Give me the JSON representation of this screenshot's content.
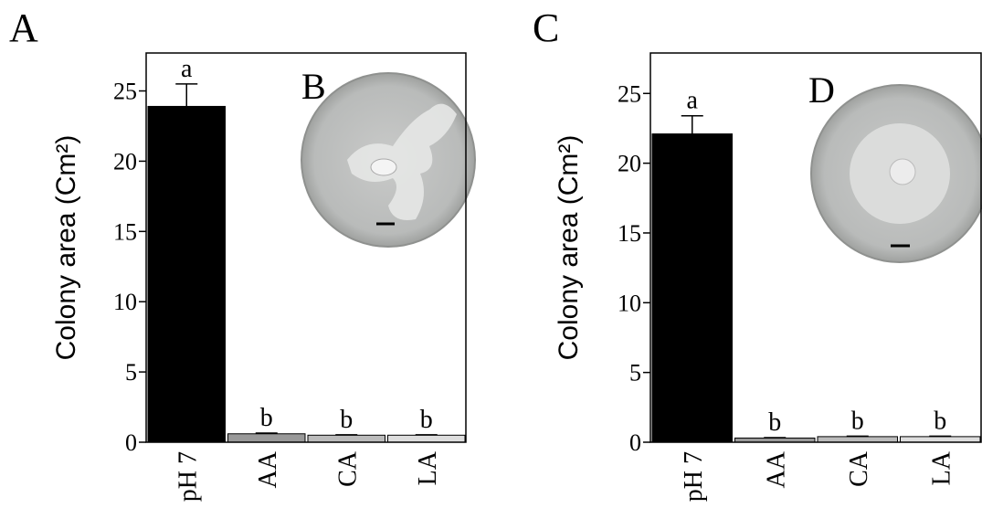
{
  "chart_data": [
    {
      "type": "bar",
      "panel_label": "A",
      "inset_label": "B",
      "ylabel": "Colony area (Cm²)",
      "categories": [
        "pH 7",
        "AA",
        "CA",
        "LA"
      ],
      "values": [
        23.9,
        0.6,
        0.5,
        0.5
      ],
      "errors": [
        1.6,
        0.05,
        0.03,
        0.03
      ],
      "annotations": [
        "a",
        "b",
        "b",
        "b"
      ],
      "colors": [
        "#000000",
        "#999999",
        "#bbbbbb",
        "#dddddd"
      ],
      "ylim": [
        0,
        27.7
      ],
      "yticks": [
        0,
        5,
        10,
        15,
        20,
        25
      ]
    },
    {
      "type": "bar",
      "panel_label": "C",
      "inset_label": "D",
      "ylabel": "Colony area (Cm²)",
      "categories": [
        "pH 7",
        "AA",
        "CA",
        "LA"
      ],
      "values": [
        22.1,
        0.3,
        0.4,
        0.4
      ],
      "errors": [
        1.3,
        0.03,
        0.03,
        0.03
      ],
      "annotations": [
        "a",
        "b",
        "b",
        "b"
      ],
      "colors": [
        "#000000",
        "#999999",
        "#bbbbbb",
        "#dddddd"
      ],
      "ylim": [
        0,
        27.9
      ],
      "yticks": [
        0,
        5,
        10,
        15,
        20,
        25
      ]
    }
  ]
}
